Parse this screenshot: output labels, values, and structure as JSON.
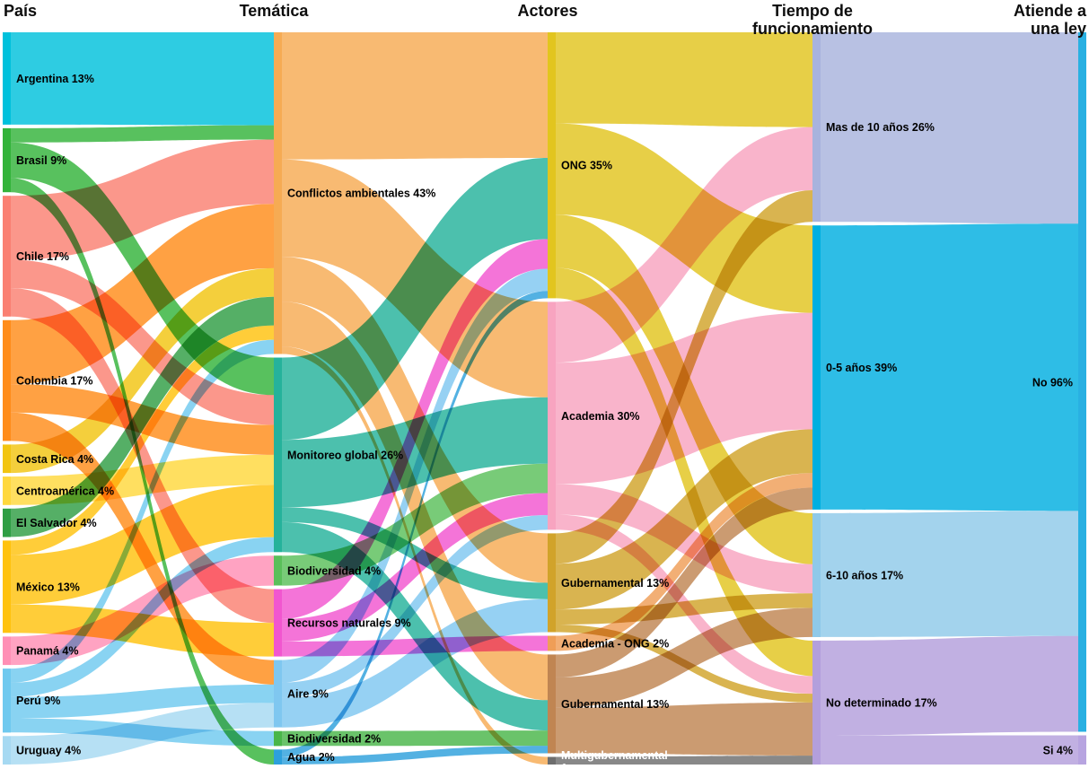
{
  "chart_data": {
    "type": "sankey",
    "unit": "percent",
    "columns": [
      {
        "header": "País",
        "nodes": [
          {
            "label": "Argentina 13%",
            "value": 13,
            "color": "#00c1dc"
          },
          {
            "label": "Brasil 9%",
            "value": 9,
            "color": "#33b33a"
          },
          {
            "label": "Chile 17%",
            "value": 17,
            "color": "#fa8072"
          },
          {
            "label": "Colombia 17%",
            "value": 17,
            "color": "#ff8c1a"
          },
          {
            "label": "Costa Rica 4%",
            "value": 4,
            "color": "#f2c511"
          },
          {
            "label": "Centroamérica 4%",
            "value": 4,
            "color": "#ffd83d"
          },
          {
            "label": "El Salvador 4%",
            "value": 4,
            "color": "#2f9e44"
          },
          {
            "label": "México 13%",
            "value": 13,
            "color": "#ffc20e"
          },
          {
            "label": "Panamá 4%",
            "value": 4,
            "color": "#ff8fb5"
          },
          {
            "label": "Perú 9%",
            "value": 9,
            "color": "#6fc9ef"
          },
          {
            "label": "Uruguay 4%",
            "value": 4,
            "color": "#a6d9f2"
          }
        ]
      },
      {
        "header": "Temática",
        "nodes": [
          {
            "label": "Conflictos ambientales 43%",
            "value": 43,
            "color": "#f6ab53"
          },
          {
            "label": "Monitoreo global 26%",
            "value": 26,
            "color": "#25b29b"
          },
          {
            "label": "Biodiversidad 4%",
            "value": 4,
            "color": "#5abf5a"
          },
          {
            "label": "Recursos naturales 9%",
            "value": 9,
            "color": "#f156cf"
          },
          {
            "label": "Aire 9%",
            "value": 9,
            "color": "#7fc7f0"
          },
          {
            "label": "Biodiversidad 2%",
            "value": 2,
            "color": "#49b649"
          },
          {
            "label": "Agua 2%",
            "value": 2,
            "color": "#2da0dc"
          }
        ]
      },
      {
        "header": "Actores",
        "nodes": [
          {
            "label": "ONG 35%",
            "value": 35,
            "color": "#e2c51e"
          },
          {
            "label": "Academia 30%",
            "value": 30,
            "color": "#f8a4c0"
          },
          {
            "label": "Gubernamental 13%",
            "value": 13,
            "color": "#d1a32a"
          },
          {
            "label": "Academia - ONG 2%",
            "value": 2,
            "color": "#ef9e57"
          },
          {
            "label": "Gubernamental 13%",
            "value": 13,
            "color": "#c08552"
          },
          {
            "label": "Multigubernamental\n1",
            "value": 1,
            "color": "#6e6e6e",
            "label_color": "#ffffff"
          }
        ]
      },
      {
        "header": "Tiempo de\nfuncionamiento",
        "nodes": [
          {
            "label": "Mas de 10 años 26%",
            "value": 26,
            "color": "#a8b3dd"
          },
          {
            "label": "0-5 años 39%",
            "value": 39,
            "color": "#00afe0"
          },
          {
            "label": "6-10 años 17%",
            "value": 17,
            "color": "#8fc9e9"
          },
          {
            "label": "No determinado 17%",
            "value": 17,
            "color": "#b39fdc"
          }
        ]
      },
      {
        "header": "Atiende a\nuna ley",
        "nodes": [
          {
            "label": "No 96%",
            "value": 96,
            "color": "#29b0e2"
          },
          {
            "label": "Si 4%",
            "value": 4,
            "color": "#b7a4e0"
          }
        ]
      }
    ],
    "links": [
      {
        "from": [
          0,
          0
        ],
        "to": [
          1,
          0
        ],
        "value": 13
      },
      {
        "from": [
          0,
          1
        ],
        "to": [
          1,
          0
        ],
        "value": 2
      },
      {
        "from": [
          0,
          1
        ],
        "to": [
          1,
          1
        ],
        "value": 5
      },
      {
        "from": [
          0,
          1
        ],
        "to": [
          1,
          6
        ],
        "value": 2
      },
      {
        "from": [
          0,
          2
        ],
        "to": [
          1,
          0
        ],
        "value": 9
      },
      {
        "from": [
          0,
          2
        ],
        "to": [
          1,
          1
        ],
        "value": 4
      },
      {
        "from": [
          0,
          2
        ],
        "to": [
          1,
          3
        ],
        "value": 4
      },
      {
        "from": [
          0,
          3
        ],
        "to": [
          1,
          0
        ],
        "value": 9
      },
      {
        "from": [
          0,
          3
        ],
        "to": [
          1,
          1
        ],
        "value": 4
      },
      {
        "from": [
          0,
          3
        ],
        "to": [
          1,
          4
        ],
        "value": 4
      },
      {
        "from": [
          0,
          4
        ],
        "to": [
          1,
          0
        ],
        "value": 4
      },
      {
        "from": [
          0,
          5
        ],
        "to": [
          1,
          1
        ],
        "value": 4
      },
      {
        "from": [
          0,
          6
        ],
        "to": [
          1,
          0
        ],
        "value": 4
      },
      {
        "from": [
          0,
          7
        ],
        "to": [
          1,
          0
        ],
        "value": 2
      },
      {
        "from": [
          0,
          7
        ],
        "to": [
          1,
          1
        ],
        "value": 7
      },
      {
        "from": [
          0,
          7
        ],
        "to": [
          1,
          3
        ],
        "value": 4
      },
      {
        "from": [
          0,
          8
        ],
        "to": [
          1,
          2
        ],
        "value": 4
      },
      {
        "from": [
          0,
          9
        ],
        "to": [
          1,
          0
        ],
        "value": 2
      },
      {
        "from": [
          0,
          9
        ],
        "to": [
          1,
          1
        ],
        "value": 2
      },
      {
        "from": [
          0,
          9
        ],
        "to": [
          1,
          4
        ],
        "value": 3
      },
      {
        "from": [
          0,
          9
        ],
        "to": [
          1,
          5
        ],
        "value": 2
      },
      {
        "from": [
          0,
          10
        ],
        "to": [
          1,
          4
        ],
        "value": 4
      },
      {
        "from": [
          1,
          0
        ],
        "to": [
          2,
          0
        ],
        "value": 17
      },
      {
        "from": [
          1,
          0
        ],
        "to": [
          2,
          1
        ],
        "value": 13
      },
      {
        "from": [
          1,
          0
        ],
        "to": [
          2,
          2
        ],
        "value": 6
      },
      {
        "from": [
          1,
          0
        ],
        "to": [
          2,
          4
        ],
        "value": 6
      },
      {
        "from": [
          1,
          0
        ],
        "to": [
          2,
          5
        ],
        "value": 1
      },
      {
        "from": [
          1,
          1
        ],
        "to": [
          2,
          0
        ],
        "value": 11
      },
      {
        "from": [
          1,
          1
        ],
        "to": [
          2,
          1
        ],
        "value": 9
      },
      {
        "from": [
          1,
          1
        ],
        "to": [
          2,
          2
        ],
        "value": 2
      },
      {
        "from": [
          1,
          1
        ],
        "to": [
          2,
          4
        ],
        "value": 4
      },
      {
        "from": [
          1,
          2
        ],
        "to": [
          2,
          1
        ],
        "value": 4
      },
      {
        "from": [
          1,
          3
        ],
        "to": [
          2,
          0
        ],
        "value": 4
      },
      {
        "from": [
          1,
          3
        ],
        "to": [
          2,
          1
        ],
        "value": 3
      },
      {
        "from": [
          1,
          3
        ],
        "to": [
          2,
          3
        ],
        "value": 2
      },
      {
        "from": [
          1,
          4
        ],
        "to": [
          2,
          0
        ],
        "value": 3
      },
      {
        "from": [
          1,
          4
        ],
        "to": [
          2,
          1
        ],
        "value": 2
      },
      {
        "from": [
          1,
          4
        ],
        "to": [
          2,
          2
        ],
        "value": 4
      },
      {
        "from": [
          1,
          5
        ],
        "to": [
          2,
          4
        ],
        "value": 2
      },
      {
        "from": [
          1,
          6
        ],
        "to": [
          2,
          0
        ],
        "value": 1
      },
      {
        "from": [
          1,
          6
        ],
        "to": [
          2,
          4
        ],
        "value": 1
      },
      {
        "from": [
          2,
          0
        ],
        "to": [
          3,
          0
        ],
        "value": 12
      },
      {
        "from": [
          2,
          0
        ],
        "to": [
          3,
          1
        ],
        "value": 12
      },
      {
        "from": [
          2,
          0
        ],
        "to": [
          3,
          2
        ],
        "value": 7
      },
      {
        "from": [
          2,
          0
        ],
        "to": [
          3,
          3
        ],
        "value": 4
      },
      {
        "from": [
          2,
          1
        ],
        "to": [
          3,
          0
        ],
        "value": 8
      },
      {
        "from": [
          2,
          1
        ],
        "to": [
          3,
          1
        ],
        "value": 16
      },
      {
        "from": [
          2,
          1
        ],
        "to": [
          3,
          2
        ],
        "value": 4
      },
      {
        "from": [
          2,
          1
        ],
        "to": [
          3,
          3
        ],
        "value": 2
      },
      {
        "from": [
          2,
          2
        ],
        "to": [
          3,
          0
        ],
        "value": 4
      },
      {
        "from": [
          2,
          2
        ],
        "to": [
          3,
          1
        ],
        "value": 6
      },
      {
        "from": [
          2,
          2
        ],
        "to": [
          3,
          2
        ],
        "value": 2
      },
      {
        "from": [
          2,
          2
        ],
        "to": [
          3,
          3
        ],
        "value": 1
      },
      {
        "from": [
          2,
          3
        ],
        "to": [
          3,
          1
        ],
        "value": 2
      },
      {
        "from": [
          2,
          4
        ],
        "to": [
          3,
          1
        ],
        "value": 3
      },
      {
        "from": [
          2,
          4
        ],
        "to": [
          3,
          2
        ],
        "value": 4
      },
      {
        "from": [
          2,
          4
        ],
        "to": [
          3,
          3
        ],
        "value": 6
      },
      {
        "from": [
          2,
          5
        ],
        "to": [
          3,
          3
        ],
        "value": 1
      },
      {
        "from": [
          3,
          0
        ],
        "to": [
          4,
          0
        ],
        "value": 26
      },
      {
        "from": [
          3,
          1
        ],
        "to": [
          4,
          0
        ],
        "value": 39
      },
      {
        "from": [
          3,
          2
        ],
        "to": [
          4,
          0
        ],
        "value": 17
      },
      {
        "from": [
          3,
          3
        ],
        "to": [
          4,
          0
        ],
        "value": 13
      },
      {
        "from": [
          3,
          3
        ],
        "to": [
          4,
          1
        ],
        "value": 4
      }
    ]
  }
}
